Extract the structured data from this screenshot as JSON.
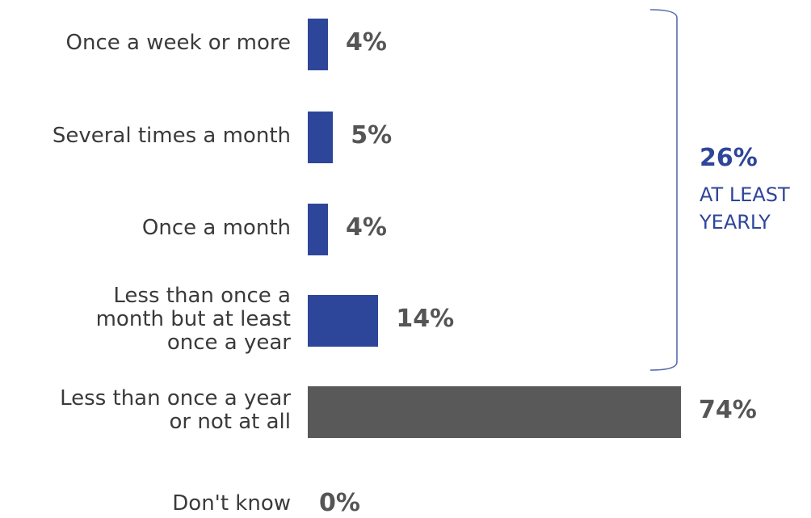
{
  "chart_data": {
    "type": "bar",
    "orientation": "horizontal",
    "categories": [
      "Once a week or more",
      "Several times a month",
      "Once a month",
      "Less than once a month but at least once a year",
      "Less than once a year or not at all",
      "Don't know"
    ],
    "category_lines": [
      [
        "Once a week or more"
      ],
      [
        "Several times a month"
      ],
      [
        "Once a month"
      ],
      [
        "Less than once a",
        "month but at least",
        "once a year"
      ],
      [
        "Less than once a year",
        "or not at all"
      ],
      [
        "Don't know"
      ]
    ],
    "values": [
      4,
      5,
      4,
      14,
      74,
      0
    ],
    "value_labels": [
      "4%",
      "5%",
      "4%",
      "14%",
      "74%",
      "0%"
    ],
    "value_unit": "%",
    "xlim": [
      0,
      74
    ],
    "grid": false,
    "colors": [
      "#2e4699",
      "#2e4699",
      "#2e4699",
      "#2e4699",
      "#595959",
      "#595959"
    ],
    "bracket": {
      "value_label": "26%",
      "lines": [
        "AT LEAST",
        "YEARLY"
      ],
      "covers_categories": [
        0,
        1,
        2,
        3
      ],
      "color": "#2e4699",
      "line_color": "#5a6aa8"
    }
  }
}
